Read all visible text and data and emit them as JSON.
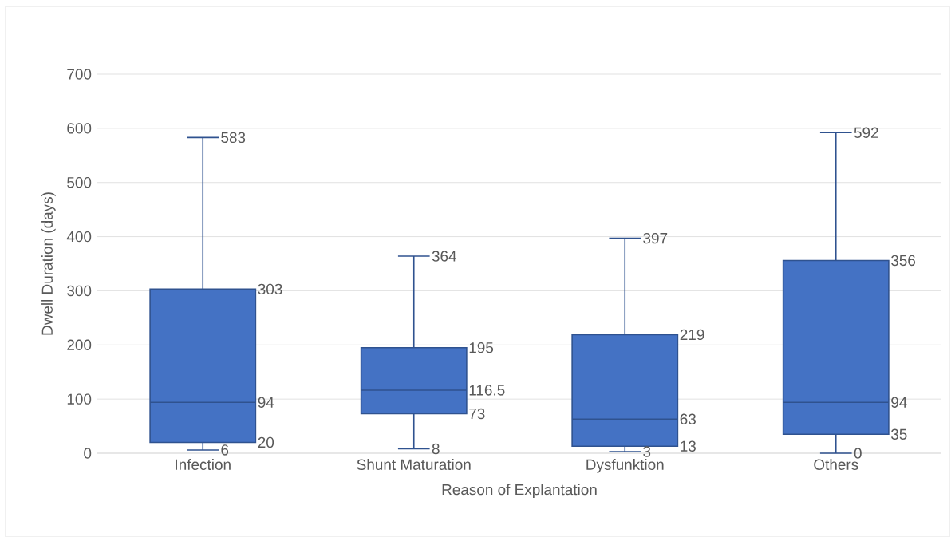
{
  "chart_data": {
    "type": "box",
    "xlabel": "Reason of Explantation",
    "ylabel": "Dwell Duration (days)",
    "categories": [
      "Infection",
      "Shunt Maturation",
      "Dysfunktion",
      "Others"
    ],
    "boxes": [
      {
        "low": 6,
        "q1": 20,
        "median": 94,
        "q3": 303,
        "high": 583
      },
      {
        "low": 8,
        "q1": 73,
        "median": 116.5,
        "q3": 195,
        "high": 364
      },
      {
        "low": 3,
        "q1": 13,
        "median": 63,
        "q3": 219,
        "high": 397
      },
      {
        "low": 0,
        "q1": 35,
        "median": 94,
        "q3": 356,
        "high": 592
      }
    ],
    "color": "#4472c4",
    "ylim": [
      0,
      700
    ],
    "yticks": [
      0,
      100,
      200,
      300,
      400,
      500,
      600,
      700
    ],
    "grid": "y",
    "data_labels": true,
    "annotations": [
      "583",
      "6",
      "20",
      "94",
      "303",
      "364",
      "8",
      "73",
      "116.5",
      "195",
      "397",
      "3",
      "13",
      "63",
      "219",
      "592",
      "0",
      "35",
      "94",
      "356"
    ]
  }
}
